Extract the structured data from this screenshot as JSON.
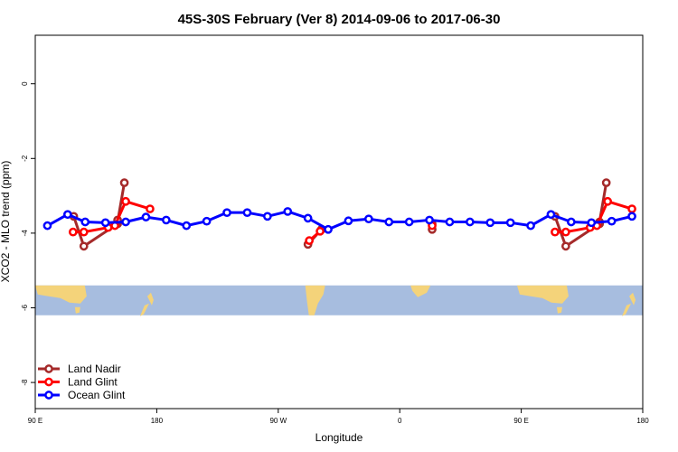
{
  "chart_data": {
    "type": "line",
    "title": "45S-30S February (Ver 8)   2014-09-06 to 2017-06-30",
    "xlabel": "Longitude",
    "ylabel": "XCO2 - MLO trend (ppm)",
    "xlim": [
      90,
      540
    ],
    "ylim": [
      -8.7,
      1.3
    ],
    "x_ticks": [
      {
        "value": 90,
        "label": "90 E"
      },
      {
        "value": 180,
        "label": "180"
      },
      {
        "value": 270,
        "label": "90 W"
      },
      {
        "value": 360,
        "label": "0"
      },
      {
        "value": 450,
        "label": "90 E"
      },
      {
        "value": 540,
        "label": "180"
      }
    ],
    "y_ticks": [
      {
        "value": 0,
        "label": "0"
      },
      {
        "value": -2,
        "label": "-2"
      },
      {
        "value": -4,
        "label": "-4"
      },
      {
        "value": -6,
        "label": "-6"
      },
      {
        "value": -8,
        "label": "-8"
      }
    ],
    "map_band": {
      "y_top": -5.4,
      "y_bottom": -6.2,
      "ocean_color": "#a7bddf",
      "land_color": "#f4d37a"
    },
    "legend_position": "bottom-left",
    "series": [
      {
        "name": "Land Nadir",
        "color": "#a52a2a",
        "segments": [
          [
            [
              118.5,
              -3.55
            ],
            [
              126,
              -4.35
            ],
            [
              151,
              -3.75
            ],
            [
              151,
              -3.7
            ],
            [
              151,
              -3.75
            ],
            [
              151,
              -3.65
            ],
            [
              151,
              -3.7
            ],
            [
              151,
              -3.75
            ],
            [
              151,
              -3.7
            ],
            [
              151,
              -3.75
            ],
            [
              151,
              -3.7
            ],
            [
              151,
              -3.75
            ],
            [
              151,
              -3.7
            ],
            [
              156,
              -2.65
            ]
          ],
          [
            [
              292,
              -4.3
            ],
            [
              302,
              -3.9
            ]
          ],
          [
            [
              384,
              -3.75
            ],
            [
              384,
              -3.9
            ]
          ],
          [
            [
              475,
              -3.55
            ],
            [
              483,
              -4.35
            ],
            [
              508,
              -3.75
            ],
            [
              508,
              -3.7
            ],
            [
              508,
              -3.75
            ],
            [
              508,
              -3.7
            ],
            [
              508,
              -3.75
            ],
            [
              508,
              -3.7
            ],
            [
              508,
              -3.75
            ],
            [
              508,
              -3.7
            ],
            [
              508,
              -3.75
            ],
            [
              508,
              -3.7
            ],
            [
              508,
              -3.75
            ],
            [
              508,
              -3.7
            ],
            [
              508,
              -3.75
            ],
            [
              508,
              -3.7
            ],
            [
              508,
              -3.75
            ],
            [
              508,
              -3.7
            ],
            [
              508,
              -3.75
            ],
            [
              508,
              -3.7
            ],
            [
              508,
              -3.75
            ],
            [
              508,
              -3.7
            ],
            [
              508,
              -3.75
            ],
            [
              508,
              -3.7
            ],
            [
              508,
              -3.75
            ],
            [
              508,
              -3.7
            ],
            [
              508,
              -3.75
            ],
            [
              508,
              -3.7
            ],
            [
              508,
              -3.75
            ],
            [
              508,
              -3.7
            ],
            [
              508,
              -3.75
            ],
            [
              508,
              -3.7
            ],
            [
              508,
              -3.75
            ],
            [
              508,
              -3.7
            ],
            [
              508,
              -3.75
            ],
            [
              508,
              -3.7
            ],
            [
              508,
              -3.75
            ],
            [
              508,
              -3.7
            ],
            [
              508,
              -3.75
            ],
            [
              508,
              -3.7
            ],
            [
              508,
              -3.75
            ],
            [
              508,
              -3.7
            ],
            [
              508,
              -3.75
            ],
            [
              508,
              -3.7
            ],
            [
              508,
              -3.75
            ],
            [
              508,
              -3.7
            ],
            [
              508,
              -3.75
            ],
            [
              508,
              -3.7
            ],
            [
              508,
              -3.75
            ],
            [
              508,
              -3.7
            ],
            [
              508,
              -3.75
            ],
            [
              508,
              -3.7
            ],
            [
              508,
              -3.75
            ],
            [
              508,
              -3.7
            ],
            [
              508,
              -3.75
            ],
            [
              508,
              -3.7
            ],
            [
              508,
              -3.75
            ],
            [
              508,
              -3.7
            ],
            [
              508,
              -3.75
            ],
            [
              508,
              -3.7
            ],
            [
              508,
              -3.75
            ],
            [
              508,
              -3.7
            ],
            [
              508,
              -3.75
            ],
            [
              508,
              -3.7
            ],
            [
              508,
              -3.75
            ],
            [
              508,
              -3.7
            ],
            [
              508,
              -3.75
            ],
            [
              508,
              -3.7
            ],
            [
              513,
              -2.65
            ]
          ]
        ]
      },
      {
        "name": "Land Glint",
        "color": "#ff0000",
        "segments": [
          [
            [
              118,
              -3.97
            ],
            [
              126,
              -3.97
            ],
            [
              144,
              -3.85
            ],
            [
              149,
              -3.8
            ],
            [
              157,
              -3.15
            ],
            [
              175,
              -3.35
            ]
          ],
          [
            [
              293,
              -4.2
            ],
            [
              301,
              -3.95
            ]
          ],
          [
            [
              384,
              -3.8
            ]
          ],
          [
            [
              475,
              -3.97
            ],
            [
              483,
              -3.97
            ],
            [
              501,
              -3.85
            ],
            [
              506,
              -3.8
            ],
            [
              514,
              -3.15
            ],
            [
              532,
              -3.35
            ]
          ]
        ]
      },
      {
        "name": "Ocean Glint",
        "color": "#0000ff",
        "segments": [
          [
            [
              99,
              -3.8
            ],
            [
              114,
              -3.5
            ],
            [
              127,
              -3.7
            ],
            [
              142,
              -3.72
            ],
            [
              157,
              -3.7
            ],
            [
              172,
              -3.57
            ],
            [
              187,
              -3.65
            ],
            [
              202,
              -3.8
            ],
            [
              217,
              -3.68
            ],
            [
              232,
              -3.45
            ],
            [
              247,
              -3.45
            ],
            [
              262,
              -3.55
            ],
            [
              277,
              -3.42
            ],
            [
              292,
              -3.6
            ],
            [
              307,
              -3.9
            ],
            [
              322,
              -3.67
            ],
            [
              337,
              -3.62
            ],
            [
              352,
              -3.7
            ],
            [
              367,
              -3.7
            ],
            [
              382,
              -3.65
            ],
            [
              397,
              -3.7
            ],
            [
              412,
              -3.7
            ],
            [
              427,
              -3.72
            ],
            [
              442,
              -3.72
            ],
            [
              457,
              -3.8
            ],
            [
              472,
              -3.5
            ],
            [
              487,
              -3.7
            ],
            [
              502,
              -3.72
            ],
            [
              517,
              -3.68
            ],
            [
              532,
              -3.55
            ]
          ]
        ]
      }
    ]
  }
}
